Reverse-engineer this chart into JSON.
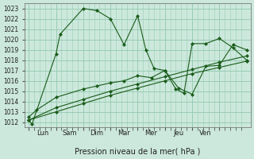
{
  "xlabel": "Pression niveau de la mer( hPa )",
  "ylim": [
    1011.5,
    1023.5
  ],
  "yticks": [
    1012,
    1013,
    1014,
    1015,
    1016,
    1017,
    1018,
    1019,
    1020,
    1021,
    1022,
    1023
  ],
  "xtick_labels": [
    "Lun",
    "Sam",
    "Dim",
    "Mar",
    "Mer",
    "Jeu",
    "Ven"
  ],
  "background_color": "#cce8dc",
  "grid_color": "#99ccb4",
  "line_color": "#1a5c1a",
  "series": [
    {
      "x": [
        0,
        0.12,
        1,
        1.15,
        2,
        2.5,
        3,
        3.5,
        4,
        4.3,
        4.6,
        5,
        5.4,
        5.7,
        6,
        6.5,
        7,
        7.5,
        8
      ],
      "y": [
        1012.2,
        1011.8,
        1018.6,
        1020.5,
        1023.0,
        1022.8,
        1022.0,
        1019.5,
        1022.3,
        1019.0,
        1017.2,
        1017.0,
        1015.2,
        1014.8,
        1019.6,
        1019.6,
        1020.1,
        1019.2,
        1018.0
      ]
    },
    {
      "x": [
        0,
        0.3,
        1,
        2,
        2.5,
        3,
        3.5,
        4,
        4.5,
        5,
        5.5,
        6,
        6.5,
        7,
        7.5,
        8
      ],
      "y": [
        1012.5,
        1013.2,
        1014.4,
        1015.2,
        1015.5,
        1015.8,
        1016.0,
        1016.5,
        1016.3,
        1017.0,
        1015.3,
        1014.7,
        1017.4,
        1017.5,
        1019.5,
        1019.0
      ]
    },
    {
      "x": [
        0,
        1,
        2,
        3,
        4,
        5,
        6,
        7,
        8
      ],
      "y": [
        1012.2,
        1013.4,
        1014.2,
        1015.0,
        1015.7,
        1016.4,
        1017.1,
        1017.8,
        1018.4
      ]
    },
    {
      "x": [
        0,
        1,
        2,
        3,
        4,
        5,
        6,
        7,
        8
      ],
      "y": [
        1012.2,
        1013.0,
        1013.8,
        1014.6,
        1015.3,
        1016.0,
        1016.7,
        1017.3,
        1017.9
      ]
    }
  ]
}
